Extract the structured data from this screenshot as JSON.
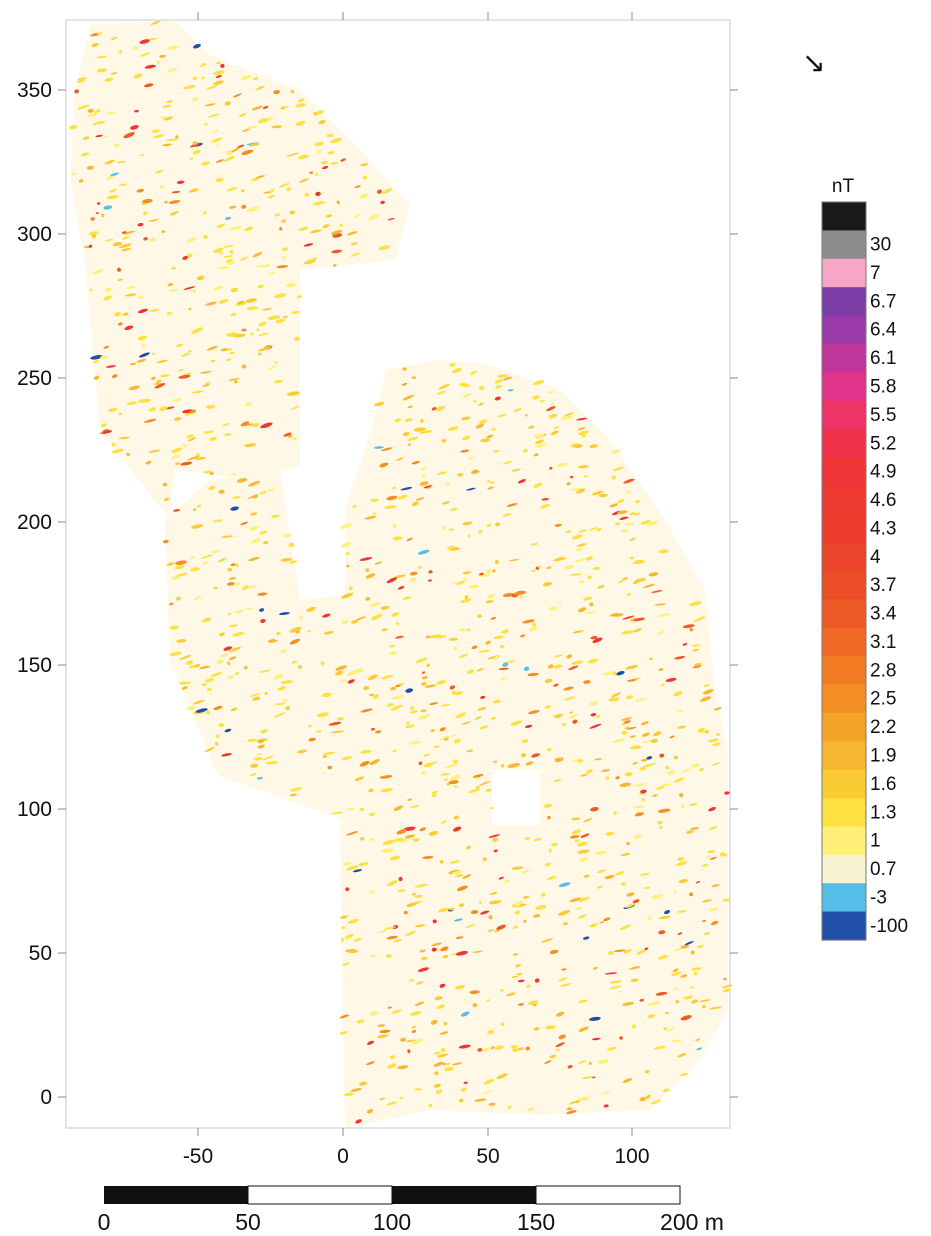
{
  "map": {
    "north_arrow_glyph": "↘",
    "x_axis_ticks": [
      "-50",
      "0",
      "50",
      "100"
    ],
    "y_axis_ticks": [
      "350",
      "300",
      "250",
      "200",
      "150",
      "100",
      "50",
      "0"
    ]
  },
  "legend": {
    "unit": "nT",
    "labels": [
      "30",
      "7",
      "6.7",
      "6.4",
      "6.1",
      "5.8",
      "5.5",
      "5.2",
      "4.9",
      "4.6",
      "4.3",
      "4",
      "3.7",
      "3.4",
      "3.1",
      "2.8",
      "2.5",
      "2.2",
      "1.9",
      "1.6",
      "1.3",
      "1",
      "0.7",
      "-3",
      "-100"
    ],
    "colors": [
      "#1a1a1a",
      "#8c8c8c",
      "#f7a6c6",
      "#7a3ea6",
      "#9a3aa8",
      "#c0359a",
      "#e0338a",
      "#ee3368",
      "#f0334a",
      "#ef3535",
      "#ee3a30",
      "#ec3d2d",
      "#eb442b",
      "#ec4f28",
      "#ee5a26",
      "#f06a26",
      "#f27d25",
      "#f48f24",
      "#f6a428",
      "#f8b730",
      "#fbcb34",
      "#fde140",
      "#fff07a",
      "#f6f4d0",
      "#55bde8",
      "#1f4fa8"
    ]
  },
  "scale_bar": {
    "labels": [
      "0",
      "50",
      "100",
      "150",
      "200 m"
    ]
  }
}
